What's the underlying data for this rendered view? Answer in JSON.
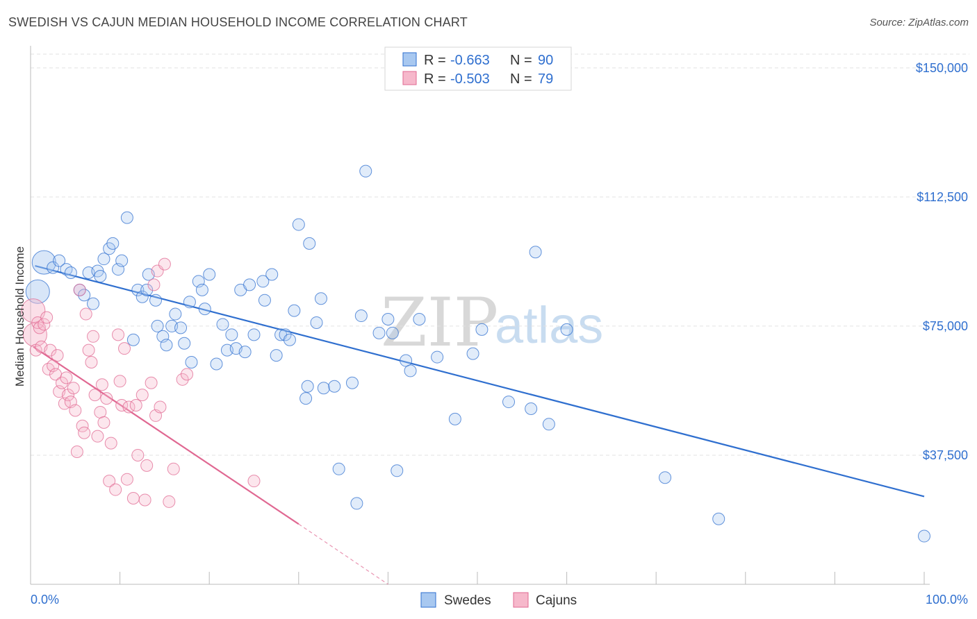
{
  "header": {
    "title": "SWEDISH VS CAJUN MEDIAN HOUSEHOLD INCOME CORRELATION CHART",
    "source": "Source: ZipAtlas.com"
  },
  "watermark": {
    "left": "ZIP",
    "right": "atlas"
  },
  "colors": {
    "blue": "#2f6fcf",
    "blue_fill": "#a8c8f0",
    "pink": "#e06892",
    "pink_fill": "#f6b8cb",
    "grid": "#e2e2e2"
  },
  "legend": {
    "rows": [
      {
        "r_label": "R =",
        "r_value": "-0.663",
        "n_label": "N =",
        "n_value": "90"
      },
      {
        "r_label": "R =",
        "r_value": "-0.503",
        "n_label": "N =",
        "n_value": "79"
      }
    ]
  },
  "chart_data": {
    "type": "scatter",
    "title": "SWEDISH VS CAJUN MEDIAN HOUSEHOLD INCOME CORRELATION CHART",
    "xlabel": "",
    "ylabel": "Median Household Income",
    "x_tick_labels": [
      "0.0%",
      "100.0%"
    ],
    "y_tick_labels": [
      "$37,500",
      "$75,000",
      "$112,500",
      "$150,000"
    ],
    "y_ticks": [
      37500,
      75000,
      112500,
      150000
    ],
    "xlim": [
      0,
      100
    ],
    "ylim": [
      0,
      154000
    ],
    "grid": true,
    "series": [
      {
        "name": "Swedes",
        "color": "#2f6fcf",
        "r": -0.663,
        "n": 90,
        "trend": {
          "x": [
            0.5,
            100
          ],
          "y": [
            92500,
            25500
          ]
        },
        "points": [
          [
            0.8,
            85000,
            1
          ],
          [
            1.5,
            93500,
            1
          ],
          [
            2.5,
            92000,
            0
          ],
          [
            3.2,
            94000,
            0
          ],
          [
            4.0,
            91500,
            0
          ],
          [
            4.5,
            90500,
            0
          ],
          [
            5.5,
            85500,
            0
          ],
          [
            6.0,
            84000,
            0
          ],
          [
            6.5,
            90500,
            0
          ],
          [
            7.0,
            81500,
            0
          ],
          [
            7.5,
            91000,
            0
          ],
          [
            7.8,
            89500,
            0
          ],
          [
            8.2,
            94500,
            0
          ],
          [
            8.8,
            97500,
            0
          ],
          [
            9.2,
            99000,
            0
          ],
          [
            9.8,
            91500,
            0
          ],
          [
            10.2,
            94000,
            0
          ],
          [
            10.8,
            106500,
            0
          ],
          [
            11.5,
            71000,
            0
          ],
          [
            12.0,
            85500,
            0
          ],
          [
            12.5,
            83500,
            0
          ],
          [
            13.0,
            85500,
            0
          ],
          [
            13.2,
            90000,
            0
          ],
          [
            14.0,
            82500,
            0
          ],
          [
            14.2,
            75000,
            0
          ],
          [
            14.8,
            72000,
            0
          ],
          [
            15.2,
            69500,
            0
          ],
          [
            15.8,
            75000,
            0
          ],
          [
            16.2,
            78500,
            0
          ],
          [
            16.8,
            74500,
            0
          ],
          [
            17.2,
            70000,
            0
          ],
          [
            17.8,
            82000,
            0
          ],
          [
            18.0,
            64500,
            0
          ],
          [
            18.8,
            88000,
            0
          ],
          [
            19.2,
            85500,
            0
          ],
          [
            19.5,
            80000,
            0
          ],
          [
            20.0,
            90000,
            0
          ],
          [
            20.8,
            64000,
            0
          ],
          [
            21.5,
            75500,
            0
          ],
          [
            22.0,
            68000,
            0
          ],
          [
            22.5,
            72500,
            0
          ],
          [
            23.0,
            68500,
            0
          ],
          [
            23.5,
            85500,
            0
          ],
          [
            24.0,
            67500,
            0
          ],
          [
            24.5,
            87000,
            0
          ],
          [
            25.0,
            72500,
            0
          ],
          [
            26.0,
            88000,
            0
          ],
          [
            26.2,
            82500,
            0
          ],
          [
            27.0,
            90000,
            0
          ],
          [
            27.5,
            66500,
            0
          ],
          [
            28.0,
            72500,
            0
          ],
          [
            28.5,
            72500,
            0
          ],
          [
            29.0,
            71000,
            0
          ],
          [
            29.5,
            79500,
            0
          ],
          [
            30.0,
            104500,
            0
          ],
          [
            30.8,
            54000,
            0
          ],
          [
            31.0,
            57500,
            0
          ],
          [
            31.2,
            99000,
            0
          ],
          [
            32.0,
            76000,
            0
          ],
          [
            32.5,
            83000,
            0
          ],
          [
            32.8,
            57000,
            0
          ],
          [
            34.0,
            57500,
            0
          ],
          [
            34.5,
            33500,
            0
          ],
          [
            36.0,
            58500,
            0
          ],
          [
            36.5,
            23500,
            0
          ],
          [
            37.0,
            78000,
            0
          ],
          [
            37.5,
            120000,
            0
          ],
          [
            39.0,
            73000,
            0
          ],
          [
            40.0,
            77000,
            0
          ],
          [
            40.5,
            73000,
            0
          ],
          [
            41.0,
            33000,
            0
          ],
          [
            42.0,
            65000,
            0
          ],
          [
            42.5,
            62000,
            0
          ],
          [
            43.5,
            77000,
            0
          ],
          [
            45.5,
            66000,
            0
          ],
          [
            47.5,
            48000,
            0
          ],
          [
            49.5,
            67000,
            0
          ],
          [
            50.5,
            74000,
            0
          ],
          [
            53.5,
            53000,
            0
          ],
          [
            56.0,
            51000,
            0
          ],
          [
            56.5,
            96500,
            0
          ],
          [
            58.0,
            46500,
            0
          ],
          [
            60.0,
            74000,
            0
          ],
          [
            71.0,
            31000,
            0
          ],
          [
            77.0,
            19000,
            0
          ],
          [
            100.0,
            14000,
            0
          ]
        ]
      },
      {
        "name": "Cajuns",
        "color": "#e06892",
        "r": -0.503,
        "n": 79,
        "trend": {
          "x": [
            0.3,
            30
          ],
          "y": [
            69000,
            17500
          ]
        },
        "trend_dashed": {
          "x": [
            30,
            40
          ],
          "y": [
            17500,
            0
          ]
        },
        "points": [
          [
            0.3,
            79500,
            1
          ],
          [
            0.5,
            72500,
            1
          ],
          [
            0.6,
            68000,
            0
          ],
          [
            0.8,
            76000,
            0
          ],
          [
            1.0,
            74500,
            0
          ],
          [
            1.2,
            69000,
            0
          ],
          [
            1.5,
            75500,
            0
          ],
          [
            1.8,
            77500,
            0
          ],
          [
            2.0,
            62500,
            0
          ],
          [
            2.2,
            68000,
            0
          ],
          [
            2.5,
            63500,
            0
          ],
          [
            2.8,
            61000,
            0
          ],
          [
            3.0,
            66500,
            0
          ],
          [
            3.2,
            56000,
            0
          ],
          [
            3.5,
            58500,
            0
          ],
          [
            3.8,
            52500,
            0
          ],
          [
            4.0,
            60000,
            0
          ],
          [
            4.2,
            55000,
            0
          ],
          [
            4.5,
            53000,
            0
          ],
          [
            4.8,
            57000,
            0
          ],
          [
            5.0,
            50500,
            0
          ],
          [
            5.2,
            38500,
            0
          ],
          [
            5.5,
            85500,
            0
          ],
          [
            5.8,
            46000,
            0
          ],
          [
            6.0,
            44000,
            0
          ],
          [
            6.2,
            78500,
            0
          ],
          [
            6.5,
            68000,
            0
          ],
          [
            6.8,
            64500,
            0
          ],
          [
            7.0,
            72000,
            0
          ],
          [
            7.2,
            55000,
            0
          ],
          [
            7.5,
            43000,
            0
          ],
          [
            7.8,
            50000,
            0
          ],
          [
            8.0,
            58000,
            0
          ],
          [
            8.2,
            47000,
            0
          ],
          [
            8.5,
            54000,
            0
          ],
          [
            8.8,
            30000,
            0
          ],
          [
            9.0,
            41000,
            0
          ],
          [
            9.5,
            27500,
            0
          ],
          [
            9.8,
            72500,
            0
          ],
          [
            10.0,
            59000,
            0
          ],
          [
            10.2,
            52000,
            0
          ],
          [
            10.5,
            68500,
            0
          ],
          [
            10.8,
            30500,
            0
          ],
          [
            11.0,
            51500,
            0
          ],
          [
            11.5,
            25000,
            0
          ],
          [
            11.8,
            52000,
            0
          ],
          [
            12.0,
            37500,
            0
          ],
          [
            12.5,
            55000,
            0
          ],
          [
            12.8,
            24500,
            0
          ],
          [
            13.0,
            34500,
            0
          ],
          [
            13.5,
            58500,
            0
          ],
          [
            13.8,
            87000,
            0
          ],
          [
            14.0,
            49000,
            0
          ],
          [
            14.2,
            91000,
            0
          ],
          [
            14.5,
            51500,
            0
          ],
          [
            15.0,
            93000,
            0
          ],
          [
            15.5,
            24000,
            0
          ],
          [
            16.0,
            33500,
            0
          ],
          [
            17.0,
            59500,
            0
          ],
          [
            17.5,
            61000,
            0
          ],
          [
            25.0,
            30000,
            0
          ]
        ]
      }
    ]
  },
  "bottom_legend": {
    "items": [
      "Swedes",
      "Cajuns"
    ]
  }
}
